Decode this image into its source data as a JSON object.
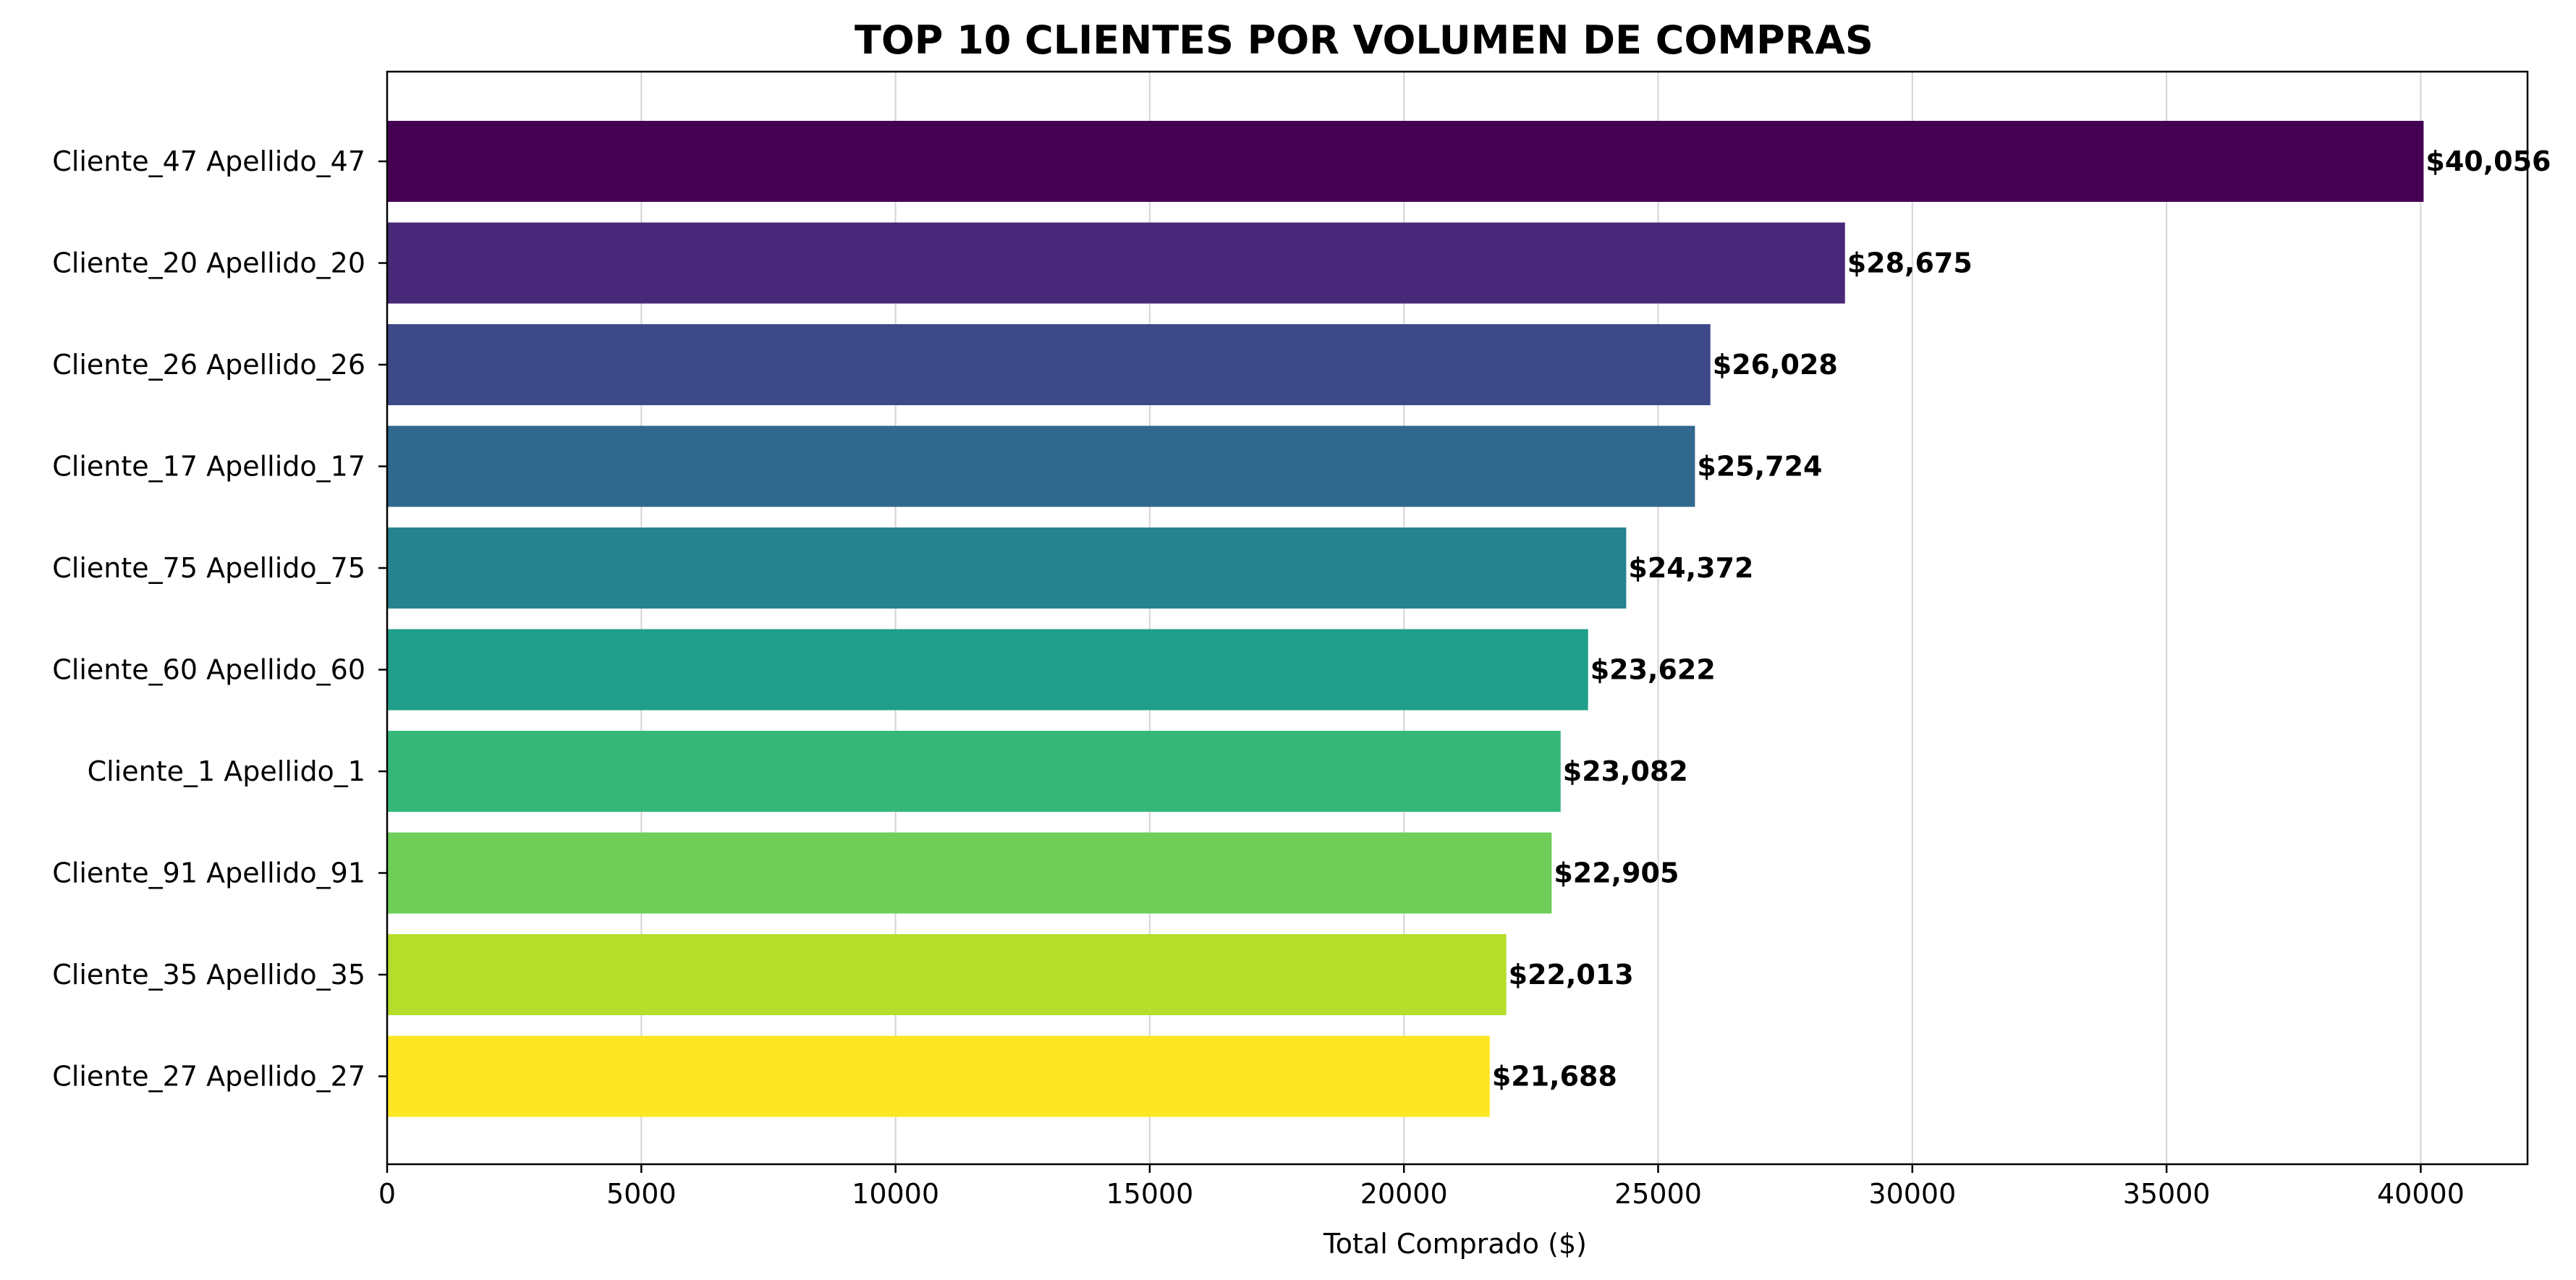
{
  "chart_data": {
    "type": "bar",
    "orientation": "horizontal",
    "title": "TOP 10 CLIENTES POR VOLUMEN DE COMPRAS",
    "xlabel": "Total Comprado ($)",
    "ylabel": "",
    "categories": [
      "Cliente_47 Apellido_47",
      "Cliente_20 Apellido_20",
      "Cliente_26 Apellido_26",
      "Cliente_17 Apellido_17",
      "Cliente_75 Apellido_75",
      "Cliente_60 Apellido_60",
      "Cliente_1 Apellido_1",
      "Cliente_91 Apellido_91",
      "Cliente_35 Apellido_35",
      "Cliente_27 Apellido_27"
    ],
    "values": [
      40056,
      28675,
      26028,
      25724,
      24372,
      23622,
      23082,
      22905,
      22013,
      21688
    ],
    "value_labels": [
      "$40,056",
      "$28,675",
      "$26,028",
      "$25,724",
      "$24,372",
      "$23,622",
      "$23,082",
      "$22,905",
      "$22,013",
      "$21,688"
    ],
    "colors": [
      "#440154",
      "#482878",
      "#3e4989",
      "#31688e",
      "#26828e",
      "#1f9e89",
      "#35b779",
      "#6ece58",
      "#b5de2b",
      "#fde725"
    ],
    "xlim": [
      0,
      42100
    ],
    "xticks": [
      0,
      5000,
      10000,
      15000,
      20000,
      25000,
      30000,
      35000,
      40000
    ],
    "xtick_labels": [
      "0",
      "5000",
      "10000",
      "15000",
      "20000",
      "25000",
      "30000",
      "35000",
      "40000"
    ],
    "grid": "x-axis vertical lines",
    "legend": "none"
  }
}
